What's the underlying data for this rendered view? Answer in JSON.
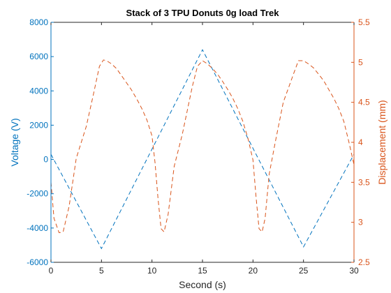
{
  "chart_data": {
    "type": "line",
    "title": "Stack of 3 TPU Donuts 0g load Trek",
    "xlabel": "Second (s)",
    "ylabel_left": "Voltage (V)",
    "ylabel_right": "Displacement (mm)",
    "xlim": [
      0,
      30
    ],
    "ylim_left": [
      -6000,
      8000
    ],
    "ylim_right": [
      2.5,
      5.5
    ],
    "x_ticks": [
      "0",
      "5",
      "10",
      "15",
      "20",
      "25",
      "30"
    ],
    "y_left_ticks": [
      "-6000",
      "-4000",
      "-2000",
      "0",
      "2000",
      "4000",
      "6000",
      "8000"
    ],
    "y_right_ticks": [
      "2.5",
      "3",
      "3.5",
      "4",
      "4.5",
      "5",
      "5.5"
    ],
    "grid": false,
    "colors": {
      "left": "#0072BD",
      "right": "#D95319",
      "axis": "#262626"
    },
    "series": [
      {
        "axis": "left",
        "style": "dashed",
        "x": [
          0,
          5,
          15,
          25,
          30
        ],
        "values": [
          300,
          -5200,
          6400,
          -5100,
          300
        ]
      },
      {
        "axis": "right",
        "style": "dashed",
        "x": [
          0,
          0.3,
          0.8,
          1.2,
          1.8,
          2.5,
          3.5,
          4.2,
          4.8,
          5.2,
          5.5,
          6,
          6.5,
          7,
          7.5,
          8,
          8.5,
          9,
          9.5,
          10,
          10.3,
          10.6,
          10.9,
          11.2,
          11.6,
          12.2,
          13,
          14,
          14.5,
          15,
          15.5,
          16,
          16.5,
          17,
          17.5,
          18,
          18.5,
          19,
          19.5,
          20,
          20.3,
          20.6,
          20.9,
          21.2,
          21.6,
          22.2,
          23,
          24,
          24.5,
          25,
          25.5,
          26,
          26.5,
          27,
          27.5,
          28,
          28.5,
          29,
          29.5,
          30
        ],
        "values": [
          3.5,
          3.05,
          2.87,
          2.88,
          3.2,
          3.8,
          4.2,
          4.6,
          4.95,
          5.03,
          5.02,
          4.98,
          4.92,
          4.83,
          4.74,
          4.65,
          4.54,
          4.42,
          4.28,
          4.08,
          3.75,
          3.3,
          2.92,
          2.88,
          3.1,
          3.7,
          4.1,
          4.7,
          4.95,
          5.02,
          4.98,
          4.92,
          4.85,
          4.76,
          4.66,
          4.55,
          4.42,
          4.26,
          4.05,
          3.78,
          3.32,
          2.92,
          2.88,
          3.05,
          3.6,
          4.0,
          4.5,
          4.85,
          5.02,
          5.02,
          4.98,
          4.93,
          4.85,
          4.77,
          4.66,
          4.55,
          4.42,
          4.26,
          4.0,
          3.72
        ]
      }
    ]
  }
}
